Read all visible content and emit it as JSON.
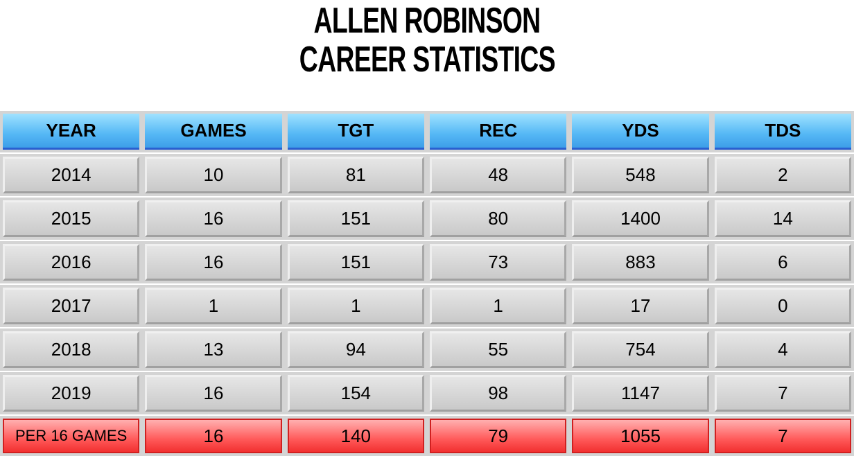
{
  "title": [
    "ALLEN ROBINSON",
    "CAREER STATISTICS"
  ],
  "table": {
    "header": [
      "YEAR",
      "GAMES",
      "TGT",
      "REC",
      "YDS",
      "TDS"
    ],
    "rows": [
      [
        2014,
        10,
        81,
        48,
        548,
        2
      ],
      [
        2015,
        16,
        151,
        80,
        1400,
        14
      ],
      [
        2016,
        16,
        151,
        73,
        883,
        6
      ],
      [
        2017,
        1,
        1,
        1,
        17,
        0
      ],
      [
        2018,
        13,
        94,
        55,
        754,
        4
      ],
      [
        2019,
        16,
        154,
        98,
        1147,
        7
      ]
    ],
    "footer": [
      "PER 16 GAMES",
      16,
      140,
      79,
      1055,
      7
    ]
  }
}
